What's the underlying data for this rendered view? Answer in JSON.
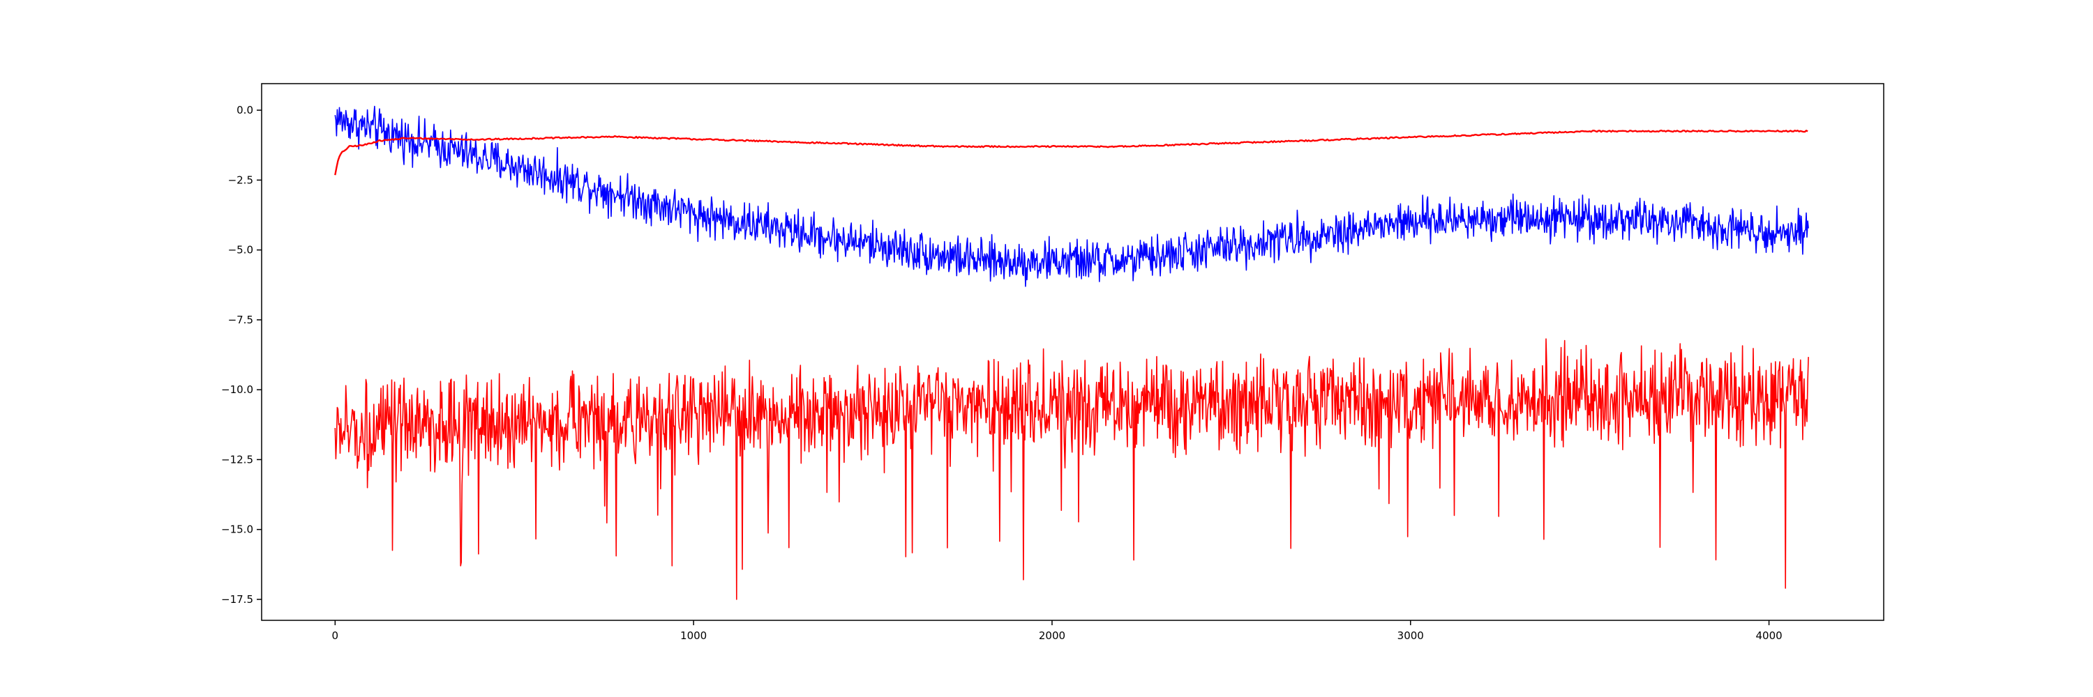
{
  "chart_data": {
    "type": "line",
    "title": "",
    "xlabel": "",
    "ylabel": "",
    "xlim": [
      -205,
      4320
    ],
    "ylim": [
      -18.25,
      0.95
    ],
    "grid": false,
    "legend": "none",
    "x_ticks": [
      0,
      1000,
      2000,
      3000,
      4000
    ],
    "y_ticks": [
      0.0,
      -2.5,
      -5.0,
      -7.5,
      -10.0,
      -12.5,
      -15.0,
      -17.5
    ],
    "x_tick_labels": [
      "0",
      "1000",
      "2000",
      "3000",
      "4000"
    ],
    "y_tick_labels": [
      "0.0",
      "−2.5",
      "−5.0",
      "−7.5",
      "−10.0",
      "−12.5",
      "−15.0",
      "−17.5"
    ],
    "series": [
      {
        "color": "#0000ff",
        "noise_amplitude": 0.55,
        "x_range": [
          0,
          4110
        ],
        "trend_x": [
          0,
          200,
          500,
          1000,
          1400,
          1800,
          2200,
          2600,
          3000,
          3300,
          3600,
          4110
        ],
        "trend_y": [
          -0.3,
          -1.0,
          -2.0,
          -3.7,
          -4.6,
          -5.4,
          -5.4,
          -4.7,
          -4.0,
          -3.8,
          -3.9,
          -4.4
        ]
      },
      {
        "color": "#ff0000",
        "smooth": true,
        "x_range": [
          0,
          4110
        ],
        "trend_x": [
          0,
          20,
          100,
          200,
          400,
          600,
          800,
          1000,
          1400,
          1800,
          2200,
          2600,
          3000,
          3400,
          3800,
          4110
        ],
        "trend_y": [
          -2.3,
          -1.5,
          -1.2,
          -1.0,
          -1.05,
          -1.1,
          -0.95,
          -1.1,
          -1.3,
          -1.3,
          -1.3,
          -1.2,
          -1.0,
          -0.8,
          -0.75,
          -0.75
        ],
        "x": [
          0,
          5,
          10,
          20,
          40,
          80,
          120,
          200,
          400,
          780,
          1700,
          2200,
          3400,
          3500,
          4110
        ],
        "y": [
          -2.3,
          -2.0,
          -1.7,
          -1.5,
          -1.3,
          -1.25,
          -1.1,
          -1.0,
          -1.05,
          -0.95,
          -1.3,
          -1.3,
          -0.8,
          -0.75,
          -0.75
        ]
      },
      {
        "color": "#ff0000",
        "noise_amplitude": 1.2,
        "x_range": [
          0,
          4110
        ],
        "trend_x": [
          0,
          1000,
          2000,
          3000,
          4110
        ],
        "trend_y": [
          -11.5,
          -10.9,
          -10.6,
          -10.4,
          -10.2
        ],
        "spikes_x": [
          1120,
          4045,
          1920,
          350,
          940
        ],
        "spikes_y": [
          -17.5,
          -17.1,
          -16.8,
          -16.3,
          -16.3
        ]
      }
    ]
  }
}
